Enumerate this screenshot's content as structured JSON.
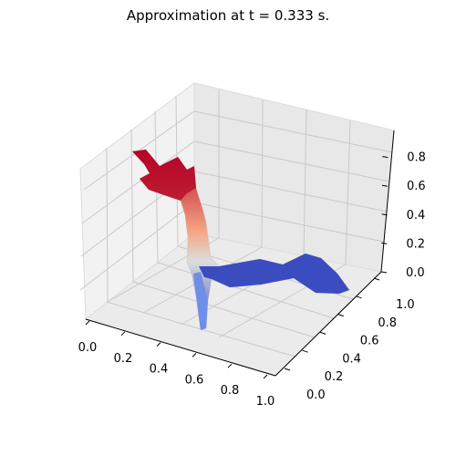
{
  "chart_data": {
    "type": "surface",
    "title": "Approximation at t = 0.333 s.",
    "xlabel": "",
    "ylabel": "",
    "zlabel": "",
    "x_ticks": [
      "0.0",
      "0.2",
      "0.4",
      "0.6",
      "0.8",
      "1.0"
    ],
    "y_ticks": [
      "0.0",
      "0.2",
      "0.4",
      "0.6",
      "0.8",
      "1.0"
    ],
    "z_ticks": [
      "0.0",
      "0.2",
      "0.4",
      "0.6",
      "0.8"
    ],
    "xlim": [
      0,
      1
    ],
    "ylim": [
      0,
      1
    ],
    "zlim": [
      0,
      0.9
    ],
    "grid": true,
    "colormap": "coolwarm",
    "colors": {
      "low": "#3b4cc0",
      "mid": "#dddddd",
      "high": "#b40426"
    },
    "surface_outline": [
      {
        "x": 0.02,
        "y": 0.98,
        "z": 0.95
      },
      {
        "x": 0.06,
        "y": 0.92,
        "z": 0.9
      },
      {
        "x": 0.1,
        "y": 0.95,
        "z": 0.88
      },
      {
        "x": 0.14,
        "y": 0.86,
        "z": 0.82
      },
      {
        "x": 0.16,
        "y": 0.8,
        "z": 0.72
      },
      {
        "x": 0.18,
        "y": 0.72,
        "z": 0.7
      },
      {
        "x": 0.2,
        "y": 0.64,
        "z": 0.55
      },
      {
        "x": 0.22,
        "y": 0.58,
        "z": 0.35
      },
      {
        "x": 0.24,
        "y": 0.55,
        "z": 0.1
      },
      {
        "x": 0.32,
        "y": 0.55,
        "z": 0.05
      },
      {
        "x": 0.45,
        "y": 0.6,
        "z": 0.04
      },
      {
        "x": 0.55,
        "y": 0.72,
        "z": 0.05
      },
      {
        "x": 0.65,
        "y": 0.78,
        "z": 0.06
      },
      {
        "x": 0.75,
        "y": 0.72,
        "z": 0.04
      },
      {
        "x": 0.86,
        "y": 0.7,
        "z": 0.04
      },
      {
        "x": 0.92,
        "y": 0.66,
        "z": 0.03
      },
      {
        "x": 0.96,
        "y": 0.62,
        "z": 0.02
      },
      {
        "x": 0.94,
        "y": 0.55,
        "z": 0.02
      },
      {
        "x": 0.85,
        "y": 0.52,
        "z": 0.02
      },
      {
        "x": 0.72,
        "y": 0.55,
        "z": 0.02
      },
      {
        "x": 0.6,
        "y": 0.45,
        "z": 0.02
      },
      {
        "x": 0.5,
        "y": 0.38,
        "z": 0.02
      },
      {
        "x": 0.42,
        "y": 0.36,
        "z": 0.02
      },
      {
        "x": 0.34,
        "y": 0.38,
        "z": 0.02
      },
      {
        "x": 0.3,
        "y": 0.25,
        "z": 0.02
      },
      {
        "x": 0.28,
        "y": 0.18,
        "z": 0.02
      },
      {
        "x": 0.22,
        "y": 0.16,
        "z": 0.05
      },
      {
        "x": 0.2,
        "y": 0.3,
        "z": 0.25
      },
      {
        "x": 0.16,
        "y": 0.45,
        "z": 0.55
      },
      {
        "x": 0.1,
        "y": 0.62,
        "z": 0.7
      },
      {
        "x": 0.04,
        "y": 0.75,
        "z": 0.72
      },
      {
        "x": 0.02,
        "y": 0.85,
        "z": 0.8
      }
    ]
  }
}
